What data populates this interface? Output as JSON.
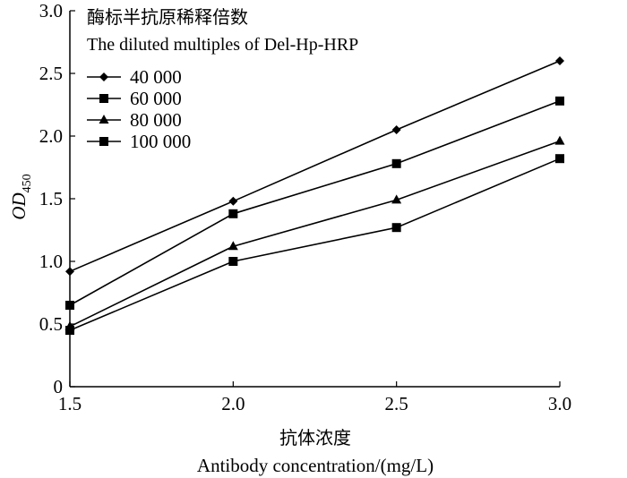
{
  "chart_data": {
    "type": "line",
    "x": [
      1.5,
      2.0,
      2.5,
      3.0
    ],
    "x_tick_labels": [
      "1.5",
      "2.0",
      "2.5",
      "3.0"
    ],
    "y_tick_labels": [
      "0",
      "0.5",
      "1.0",
      "1.5",
      "2.0",
      "2.5",
      "3.0"
    ],
    "y_ticks": [
      0,
      0.5,
      1.0,
      1.5,
      2.0,
      2.5,
      3.0
    ],
    "xlim": [
      1.5,
      3.0
    ],
    "ylim": [
      0,
      3.0
    ],
    "xlabel_cn": "抗体浓度",
    "xlabel": "Antibody concentration/(mg/L)",
    "ylabel_main": "OD",
    "ylabel_sub": "450",
    "legend_title_cn": "酶标半抗原稀释倍数",
    "legend_title": "The diluted multiples of Del-Hp-HRP",
    "legend_position": "top-left",
    "grid": false,
    "series": [
      {
        "name": "40 000",
        "marker": "diamond",
        "values": [
          0.92,
          1.48,
          2.05,
          2.6
        ]
      },
      {
        "name": "60 000",
        "marker": "square",
        "values": [
          0.65,
          1.38,
          1.78,
          2.28
        ]
      },
      {
        "name": "80 000",
        "marker": "triangle",
        "values": [
          0.48,
          1.12,
          1.49,
          1.96
        ]
      },
      {
        "name": "100 000",
        "marker": "square",
        "values": [
          0.45,
          1.0,
          1.27,
          1.82
        ]
      }
    ]
  }
}
